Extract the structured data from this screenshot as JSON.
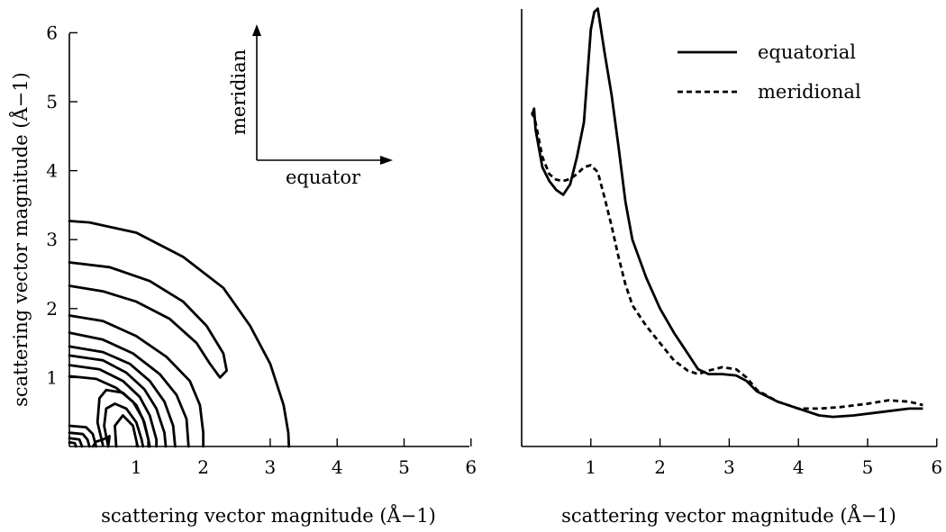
{
  "chart_data": [
    {
      "type": "contour",
      "xlabel": "scattering vector magnitude (Å−1)",
      "ylabel": "scattering vector magnitude (Å−1)",
      "xlim": [
        0,
        6
      ],
      "ylim": [
        0,
        6
      ],
      "x_ticks": [
        "1",
        "2",
        "3",
        "4",
        "5",
        "6"
      ],
      "y_ticks": [
        "1",
        "2",
        "3",
        "4",
        "5",
        "6"
      ],
      "orientation_labels": {
        "vertical": "meridian",
        "horizontal": "equator"
      },
      "contours": [
        {
          "level": 1,
          "points": [
            [
              0,
              3.27
            ],
            [
              0.3,
              3.25
            ],
            [
              1,
              3.1
            ],
            [
              1.7,
              2.75
            ],
            [
              2.3,
              2.3
            ],
            [
              2.7,
              1.75
            ],
            [
              3.0,
              1.2
            ],
            [
              3.2,
              0.6
            ],
            [
              3.27,
              0.2
            ],
            [
              3.28,
              0
            ]
          ]
        },
        {
          "level": 2,
          "points": [
            [
              0,
              2.67
            ],
            [
              0.6,
              2.6
            ],
            [
              1.2,
              2.4
            ],
            [
              1.7,
              2.1
            ],
            [
              2.05,
              1.75
            ],
            [
              2.3,
              1.35
            ],
            [
              2.35,
              1.1
            ],
            [
              2.25,
              1.0
            ],
            [
              2.1,
              1.2
            ],
            [
              1.9,
              1.5
            ],
            [
              1.5,
              1.85
            ],
            [
              1.0,
              2.1
            ],
            [
              0.5,
              2.25
            ],
            [
              0,
              2.33
            ]
          ]
        },
        {
          "level": 3,
          "points": [
            [
              0,
              1.9
            ],
            [
              0.5,
              1.82
            ],
            [
              1.0,
              1.6
            ],
            [
              1.45,
              1.3
            ],
            [
              1.8,
              0.95
            ],
            [
              1.95,
              0.6
            ],
            [
              2.0,
              0.2
            ],
            [
              2.0,
              0
            ]
          ]
        },
        {
          "level": 4,
          "points": [
            [
              0,
              1.65
            ],
            [
              0.5,
              1.55
            ],
            [
              0.95,
              1.35
            ],
            [
              1.35,
              1.05
            ],
            [
              1.6,
              0.75
            ],
            [
              1.75,
              0.4
            ],
            [
              1.78,
              0
            ]
          ]
        },
        {
          "level": 5,
          "points": [
            [
              0,
              1.45
            ],
            [
              0.5,
              1.37
            ],
            [
              0.9,
              1.2
            ],
            [
              1.2,
              0.95
            ],
            [
              1.42,
              0.65
            ],
            [
              1.55,
              0.3
            ],
            [
              1.58,
              0
            ]
          ]
        },
        {
          "level": 6,
          "points": [
            [
              0,
              1.32
            ],
            [
              0.5,
              1.25
            ],
            [
              0.85,
              1.07
            ],
            [
              1.12,
              0.83
            ],
            [
              1.3,
              0.55
            ],
            [
              1.42,
              0.2
            ],
            [
              1.44,
              0
            ]
          ]
        },
        {
          "level": 7,
          "points": [
            [
              0,
              1.18
            ],
            [
              0.45,
              1.12
            ],
            [
              0.8,
              0.95
            ],
            [
              1.05,
              0.72
            ],
            [
              1.2,
              0.45
            ],
            [
              1.3,
              0.1
            ],
            [
              1.3,
              0
            ]
          ]
        },
        {
          "level": 8,
          "points": [
            [
              0,
              1.02
            ],
            [
              0.4,
              0.98
            ],
            [
              0.7,
              0.85
            ],
            [
              0.95,
              0.65
            ],
            [
              1.1,
              0.4
            ],
            [
              1.18,
              0.1
            ],
            [
              1.2,
              0
            ]
          ]
        },
        {
          "level": 9,
          "points": [
            [
              0.5,
              0.02
            ],
            [
              0.42,
              0.35
            ],
            [
              0.45,
              0.7
            ],
            [
              0.55,
              0.82
            ],
            [
              0.8,
              0.78
            ],
            [
              1.0,
              0.6
            ],
            [
              1.12,
              0.35
            ],
            [
              1.18,
              0.1
            ],
            [
              1.18,
              0
            ]
          ]
        },
        {
          "level": 10,
          "points": [
            [
              0.58,
              0
            ],
            [
              0.52,
              0.3
            ],
            [
              0.55,
              0.55
            ],
            [
              0.68,
              0.62
            ],
            [
              0.85,
              0.55
            ],
            [
              1.0,
              0.35
            ],
            [
              1.08,
              0.1
            ],
            [
              1.1,
              0
            ]
          ]
        },
        {
          "level": 11,
          "points": [
            [
              0.7,
              0
            ],
            [
              0.68,
              0.3
            ],
            [
              0.8,
              0.45
            ],
            [
              0.95,
              0.3
            ],
            [
              1.02,
              0
            ]
          ]
        },
        {
          "level": 12,
          "points": [
            [
              0,
              0.3
            ],
            [
              0.25,
              0.28
            ],
            [
              0.35,
              0.18
            ],
            [
              0.4,
              0
            ]
          ]
        },
        {
          "level": 13,
          "points": [
            [
              0,
              0.2
            ],
            [
              0.2,
              0.18
            ],
            [
              0.27,
              0.1
            ],
            [
              0.3,
              0
            ]
          ]
        },
        {
          "level": 14,
          "points": [
            [
              0,
              0.12
            ],
            [
              0.15,
              0.1
            ],
            [
              0.19,
              0
            ]
          ]
        },
        {
          "level": 15,
          "points": [
            [
              0,
              0.06
            ],
            [
              0.08,
              0.05
            ],
            [
              0.1,
              0
            ]
          ]
        },
        {
          "level": 16,
          "points": [
            [
              0.35,
              0
            ],
            [
              0.4,
              0.07
            ],
            [
              0.5,
              0.1
            ],
            [
              0.6,
              0.15
            ],
            [
              0.58,
              0
            ]
          ]
        }
      ]
    },
    {
      "type": "line",
      "xlabel": "scattering vector magnitude (Å−1)",
      "xlim": [
        0,
        6
      ],
      "ylim": [
        0,
        6.4
      ],
      "x_ticks": [
        "1",
        "2",
        "3",
        "4",
        "5",
        "6"
      ],
      "legend_position": "top-right",
      "series": [
        {
          "name": "equatorial",
          "style": "solid",
          "points": [
            [
              0.15,
              4.8
            ],
            [
              0.18,
              4.9
            ],
            [
              0.2,
              4.6
            ],
            [
              0.3,
              4.05
            ],
            [
              0.4,
              3.85
            ],
            [
              0.5,
              3.72
            ],
            [
              0.6,
              3.65
            ],
            [
              0.7,
              3.8
            ],
            [
              0.8,
              4.2
            ],
            [
              0.9,
              4.7
            ],
            [
              1.0,
              6.05
            ],
            [
              1.05,
              6.3
            ],
            [
              1.1,
              6.35
            ],
            [
              1.2,
              5.7
            ],
            [
              1.3,
              5.1
            ],
            [
              1.4,
              4.35
            ],
            [
              1.5,
              3.55
            ],
            [
              1.6,
              3.0
            ],
            [
              1.8,
              2.45
            ],
            [
              2.0,
              2.0
            ],
            [
              2.2,
              1.65
            ],
            [
              2.4,
              1.35
            ],
            [
              2.55,
              1.12
            ],
            [
              2.7,
              1.05
            ],
            [
              2.9,
              1.05
            ],
            [
              3.1,
              1.03
            ],
            [
              3.25,
              0.95
            ],
            [
              3.4,
              0.8
            ],
            [
              3.7,
              0.65
            ],
            [
              4.0,
              0.55
            ],
            [
              4.3,
              0.45
            ],
            [
              4.5,
              0.43
            ],
            [
              4.8,
              0.45
            ],
            [
              5.2,
              0.5
            ],
            [
              5.6,
              0.55
            ],
            [
              5.8,
              0.55
            ]
          ]
        },
        {
          "name": "meridional",
          "style": "dashed",
          "points": [
            [
              0.15,
              4.85
            ],
            [
              0.2,
              4.7
            ],
            [
              0.3,
              4.2
            ],
            [
              0.4,
              3.95
            ],
            [
              0.5,
              3.87
            ],
            [
              0.6,
              3.85
            ],
            [
              0.7,
              3.88
            ],
            [
              0.8,
              3.95
            ],
            [
              0.9,
              4.05
            ],
            [
              1.0,
              4.08
            ],
            [
              1.1,
              3.98
            ],
            [
              1.2,
              3.6
            ],
            [
              1.3,
              3.2
            ],
            [
              1.4,
              2.75
            ],
            [
              1.5,
              2.35
            ],
            [
              1.6,
              2.05
            ],
            [
              1.8,
              1.75
            ],
            [
              2.0,
              1.5
            ],
            [
              2.2,
              1.25
            ],
            [
              2.4,
              1.1
            ],
            [
              2.55,
              1.05
            ],
            [
              2.7,
              1.1
            ],
            [
              2.9,
              1.15
            ],
            [
              3.1,
              1.12
            ],
            [
              3.25,
              1.0
            ],
            [
              3.4,
              0.82
            ],
            [
              3.7,
              0.65
            ],
            [
              4.0,
              0.55
            ],
            [
              4.3,
              0.55
            ],
            [
              4.6,
              0.57
            ],
            [
              5.0,
              0.62
            ],
            [
              5.3,
              0.67
            ],
            [
              5.6,
              0.65
            ],
            [
              5.8,
              0.6
            ]
          ]
        }
      ]
    }
  ]
}
